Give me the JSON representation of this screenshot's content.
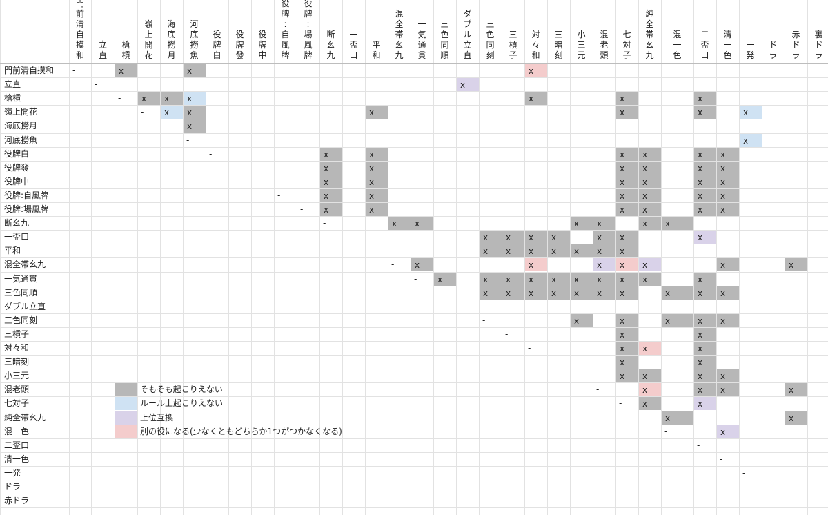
{
  "columns": [
    "門前清自摸和",
    "立直",
    "槍槓",
    "嶺上開花",
    "海底撈月",
    "河底撈魚",
    "役牌白",
    "役牌發",
    "役牌中",
    "役牌:自風牌",
    "役牌:場風牌",
    "断幺九",
    "一盃口",
    "平和",
    "混全帯幺九",
    "一気通貫",
    "三色同順",
    "ダブル立直",
    "三色同刻",
    "三槓子",
    "対々和",
    "三暗刻",
    "小三元",
    "混老頭",
    "七対子",
    "純全帯幺九",
    "混一色",
    "二盃口",
    "清一色",
    "一発",
    "ドラ",
    "赤ドラ",
    "裏ドラ"
  ],
  "rows": [
    "門前清自摸和",
    "立直",
    "槍槓",
    "嶺上開花",
    "海底撈月",
    "河底撈魚",
    "役牌白",
    "役牌發",
    "役牌中",
    "役牌:自風牌",
    "役牌:場風牌",
    "断幺九",
    "一盃口",
    "平和",
    "混全帯幺九",
    "一気通貫",
    "三色同順",
    "ダブル立直",
    "三色同刻",
    "三槓子",
    "対々和",
    "三暗刻",
    "小三元",
    "混老頭",
    "七対子",
    "純全帯幺九",
    "混一色",
    "二盃口",
    "清一色",
    "一発",
    "ドラ",
    "赤ドラ"
  ],
  "legend": [
    {
      "type": "g",
      "label": "そもそも起こりえない",
      "row": 23
    },
    {
      "type": "b",
      "label": "ルール上起こりえない",
      "row": 24
    },
    {
      "type": "p",
      "label": "上位互換",
      "row": 25
    },
    {
      "type": "r",
      "label": "別の役になる(少なくともどちらか1つがつかなくなる)",
      "row": 26
    }
  ],
  "mark": "x",
  "diag": "-",
  "colors": {
    "g": "#b7b7b7",
    "b": "#cfe2f3",
    "p": "#d9d2e9",
    "r": "#f4cccc"
  },
  "cells": [
    [
      "g",
      0,
      2
    ],
    [
      "g",
      0,
      5
    ],
    [
      "r",
      0,
      20
    ],
    [
      "p",
      1,
      17
    ],
    [
      "g",
      2,
      3
    ],
    [
      "g",
      2,
      4
    ],
    [
      "b",
      2,
      5
    ],
    [
      "g",
      2,
      20
    ],
    [
      "g",
      2,
      24
    ],
    [
      "g",
      2,
      27
    ],
    [
      "b",
      3,
      4
    ],
    [
      "g",
      3,
      5
    ],
    [
      "g",
      3,
      13
    ],
    [
      "g",
      3,
      24
    ],
    [
      "g",
      3,
      27
    ],
    [
      "b",
      3,
      29
    ],
    [
      "g",
      4,
      5
    ],
    [
      "b",
      5,
      29
    ],
    [
      "g",
      6,
      11
    ],
    [
      "g",
      6,
      13
    ],
    [
      "g",
      6,
      24
    ],
    [
      "g",
      6,
      25
    ],
    [
      "g",
      6,
      27
    ],
    [
      "g",
      6,
      28
    ],
    [
      "g",
      7,
      11
    ],
    [
      "g",
      7,
      13
    ],
    [
      "g",
      7,
      24
    ],
    [
      "g",
      7,
      25
    ],
    [
      "g",
      7,
      27
    ],
    [
      "g",
      7,
      28
    ],
    [
      "g",
      8,
      11
    ],
    [
      "g",
      8,
      13
    ],
    [
      "g",
      8,
      24
    ],
    [
      "g",
      8,
      25
    ],
    [
      "g",
      8,
      27
    ],
    [
      "g",
      8,
      28
    ],
    [
      "g",
      9,
      11
    ],
    [
      "g",
      9,
      13
    ],
    [
      "g",
      9,
      24
    ],
    [
      "g",
      9,
      25
    ],
    [
      "g",
      9,
      27
    ],
    [
      "g",
      9,
      28
    ],
    [
      "g",
      10,
      11
    ],
    [
      "g",
      10,
      13
    ],
    [
      "g",
      10,
      24
    ],
    [
      "g",
      10,
      25
    ],
    [
      "g",
      10,
      27
    ],
    [
      "g",
      10,
      28
    ],
    [
      "g",
      11,
      14
    ],
    [
      "g",
      11,
      15
    ],
    [
      "g",
      11,
      22
    ],
    [
      "g",
      11,
      23
    ],
    [
      "g",
      11,
      25
    ],
    [
      "g",
      11,
      26
    ],
    [
      "g",
      12,
      18
    ],
    [
      "g",
      12,
      19
    ],
    [
      "g",
      12,
      20
    ],
    [
      "g",
      12,
      21
    ],
    [
      "g",
      12,
      23
    ],
    [
      "g",
      12,
      24
    ],
    [
      "p",
      12,
      27
    ],
    [
      "g",
      13,
      18
    ],
    [
      "g",
      13,
      19
    ],
    [
      "g",
      13,
      20
    ],
    [
      "g",
      13,
      21
    ],
    [
      "g",
      13,
      22
    ],
    [
      "g",
      13,
      23
    ],
    [
      "g",
      13,
      24
    ],
    [
      "g",
      14,
      15
    ],
    [
      "r",
      14,
      20
    ],
    [
      "p",
      14,
      23
    ],
    [
      "r",
      14,
      24
    ],
    [
      "p",
      14,
      25
    ],
    [
      "g",
      14,
      28
    ],
    [
      "g",
      14,
      31
    ],
    [
      "g",
      15,
      16
    ],
    [
      "g",
      15,
      18
    ],
    [
      "g",
      15,
      19
    ],
    [
      "g",
      15,
      20
    ],
    [
      "g",
      15,
      21
    ],
    [
      "g",
      15,
      22
    ],
    [
      "g",
      15,
      23
    ],
    [
      "g",
      15,
      24
    ],
    [
      "g",
      15,
      25
    ],
    [
      "g",
      15,
      27
    ],
    [
      "g",
      16,
      18
    ],
    [
      "g",
      16,
      19
    ],
    [
      "g",
      16,
      20
    ],
    [
      "g",
      16,
      21
    ],
    [
      "g",
      16,
      22
    ],
    [
      "g",
      16,
      23
    ],
    [
      "g",
      16,
      24
    ],
    [
      "g",
      16,
      26
    ],
    [
      "g",
      16,
      27
    ],
    [
      "g",
      16,
      28
    ],
    [
      "g",
      18,
      22
    ],
    [
      "g",
      18,
      24
    ],
    [
      "g",
      18,
      26
    ],
    [
      "g",
      18,
      27
    ],
    [
      "g",
      18,
      28
    ],
    [
      "g",
      19,
      24
    ],
    [
      "g",
      19,
      27
    ],
    [
      "g",
      20,
      24
    ],
    [
      "r",
      20,
      25
    ],
    [
      "g",
      20,
      27
    ],
    [
      "g",
      21,
      24
    ],
    [
      "g",
      21,
      27
    ],
    [
      "g",
      22,
      24
    ],
    [
      "g",
      22,
      25
    ],
    [
      "g",
      22,
      27
    ],
    [
      "g",
      22,
      28
    ],
    [
      "r",
      23,
      25
    ],
    [
      "g",
      23,
      27
    ],
    [
      "g",
      23,
      28
    ],
    [
      "g",
      23,
      31
    ],
    [
      "g",
      24,
      25
    ],
    [
      "p",
      24,
      27
    ],
    [
      "g",
      25,
      26
    ],
    [
      "g",
      25,
      31
    ],
    [
      "p",
      26,
      28
    ]
  ],
  "diagonals": [
    [
      0,
      0
    ],
    [
      1,
      1
    ],
    [
      2,
      2
    ],
    [
      3,
      3
    ],
    [
      4,
      4
    ],
    [
      5,
      5
    ],
    [
      6,
      6
    ],
    [
      7,
      7
    ],
    [
      8,
      8
    ],
    [
      9,
      9
    ],
    [
      10,
      10
    ],
    [
      11,
      11
    ],
    [
      12,
      12
    ],
    [
      13,
      13
    ],
    [
      14,
      14
    ],
    [
      15,
      15
    ],
    [
      16,
      16
    ],
    [
      17,
      17
    ],
    [
      18,
      18
    ],
    [
      19,
      19
    ],
    [
      20,
      20
    ],
    [
      21,
      21
    ],
    [
      22,
      22
    ],
    [
      23,
      23
    ],
    [
      24,
      24
    ],
    [
      25,
      25
    ],
    [
      26,
      26
    ],
    [
      27,
      27
    ],
    [
      28,
      28
    ],
    [
      29,
      29
    ],
    [
      30,
      30
    ],
    [
      31,
      31
    ]
  ]
}
